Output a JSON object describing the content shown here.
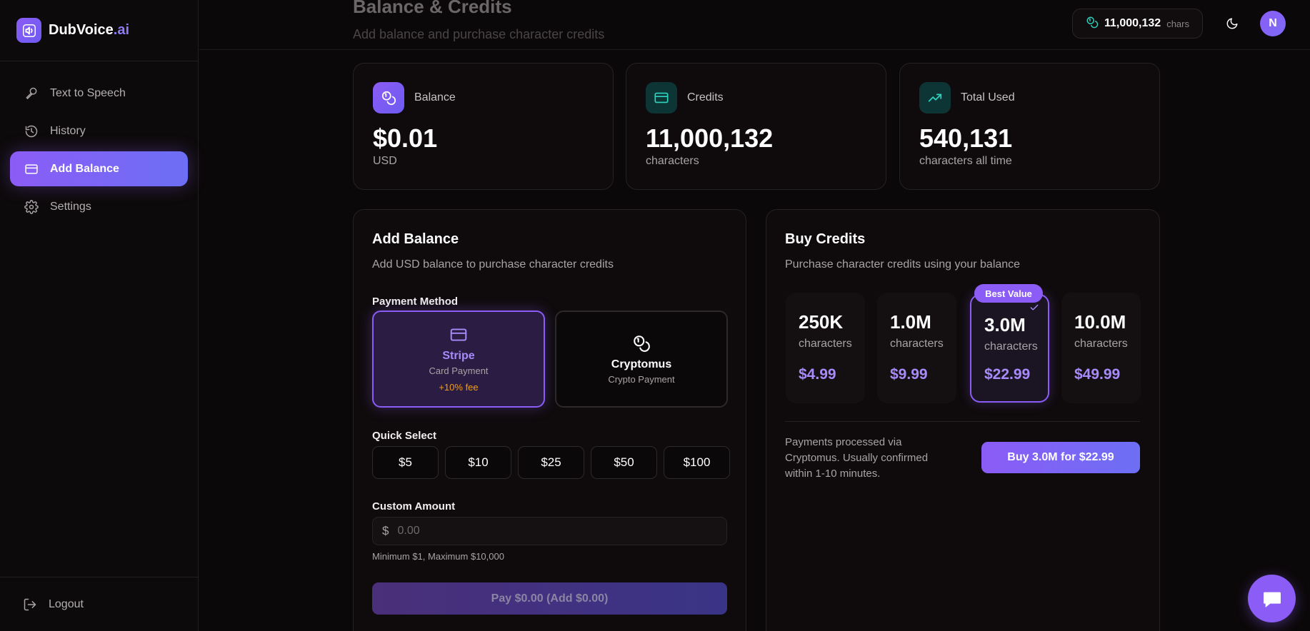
{
  "brand": {
    "name_main": "DubVoice",
    "name_accent": ".ai"
  },
  "sidebar": {
    "items": [
      {
        "label": "Text to Speech",
        "icon": "microphone-icon"
      },
      {
        "label": "History",
        "icon": "history-icon"
      },
      {
        "label": "Add Balance",
        "icon": "credit-card-icon",
        "active": true
      },
      {
        "label": "Settings",
        "icon": "gear-icon"
      }
    ],
    "logout_label": "Logout"
  },
  "header": {
    "title": "Balance & Credits",
    "subtitle": "Add balance and purchase character credits",
    "chars_count": "11,000,132",
    "chars_unit": "chars",
    "avatar_initial": "N"
  },
  "stats": {
    "balance": {
      "label": "Balance",
      "value": "$0.01",
      "unit": "USD"
    },
    "credits": {
      "label": "Credits",
      "value": "11,000,132",
      "unit": "characters"
    },
    "total_used": {
      "label": "Total Used",
      "value": "540,131",
      "unit": "characters all time"
    }
  },
  "add_balance": {
    "title": "Add Balance",
    "description": "Add USD balance to purchase character credits",
    "payment_method_label": "Payment Method",
    "methods": [
      {
        "name": "Stripe",
        "sub": "Card Payment",
        "fee": "+10% fee",
        "selected": true
      },
      {
        "name": "Cryptomus",
        "sub": "Crypto Payment",
        "selected": false
      }
    ],
    "quick_select_label": "Quick Select",
    "quick_amounts": [
      "$5",
      "$10",
      "$25",
      "$50",
      "$100"
    ],
    "custom_amount_label": "Custom Amount",
    "currency_symbol": "$",
    "custom_amount_placeholder": "0.00",
    "hint": "Minimum $1, Maximum $10,000",
    "pay_button": "Pay $0.00 (Add $0.00)"
  },
  "buy_credits": {
    "title": "Buy Credits",
    "description": "Purchase character credits using your balance",
    "packages": [
      {
        "size": "250K",
        "unit": "characters",
        "price": "$4.99"
      },
      {
        "size": "1.0M",
        "unit": "characters",
        "price": "$9.99"
      },
      {
        "size": "3.0M",
        "unit": "characters",
        "price": "$22.99",
        "selected": true
      },
      {
        "size": "10.0M",
        "unit": "characters",
        "price": "$49.99"
      }
    ],
    "best_value_badge": "Best Value",
    "note": "Payments processed via Cryptomus. Usually confirmed within 1-10 minutes.",
    "buy_button": "Buy 3.0M for $22.99"
  },
  "colors": {
    "accent": "#8b5cf6",
    "accent_light": "#a78bfa",
    "fee": "#f59e0b",
    "teal_icon": "#2dd4bf"
  }
}
